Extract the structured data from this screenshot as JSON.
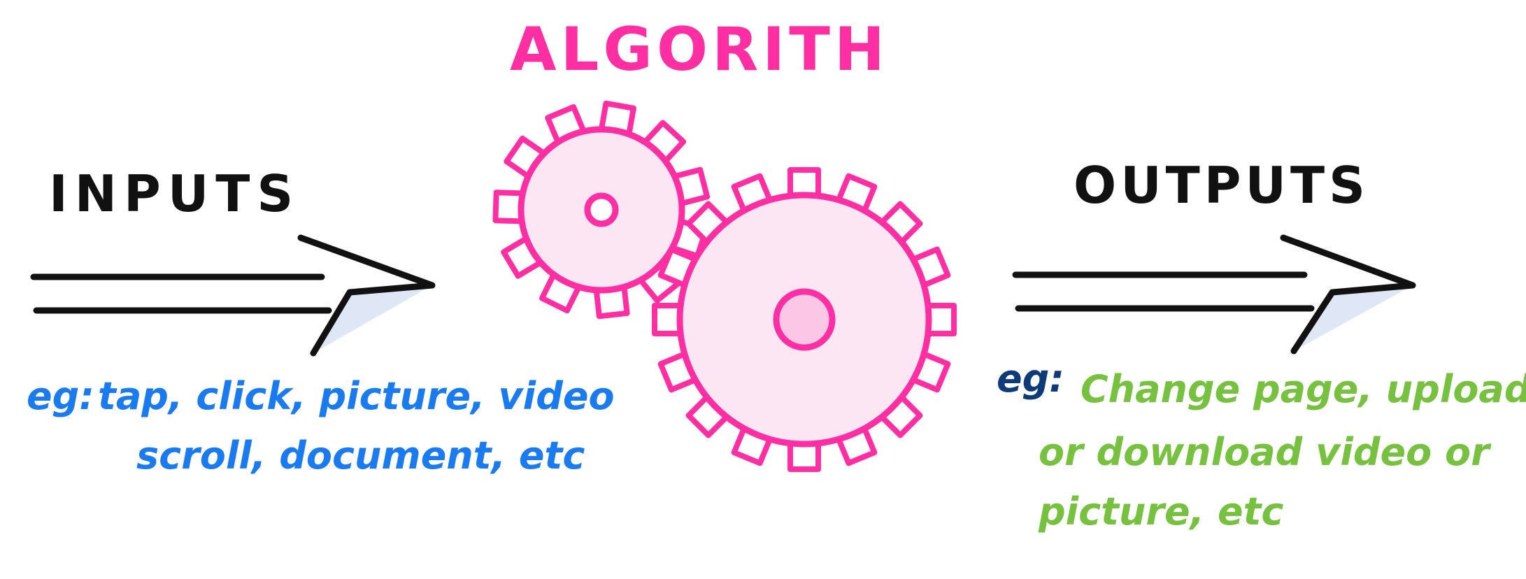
{
  "title": "ALGORITH",
  "inputs": {
    "label": "INPUTS",
    "example_prefix": "eg:",
    "example_line1": "tap, click, picture, video",
    "example_line2": "scroll, document, etc"
  },
  "outputs": {
    "label": "OUTPUTS",
    "example_prefix": "eg:",
    "example_line1": "Change page, upload",
    "example_line2": "or download video or",
    "example_line3": "picture, etc"
  },
  "colors": {
    "ink": "#111111",
    "accent": "#ff2fa3",
    "gear_fill": "#fde6f4",
    "hub_fill": "#fcc7e6",
    "inputs_example": "#1a7bf0",
    "outputs_prefix": "#0f3a7a",
    "outputs_example": "#76c13e",
    "arrow_shade": "#dfe6f6"
  },
  "icons": {
    "gears": "gears-icon",
    "input_arrow": "double-arrow-right-icon",
    "output_arrow": "double-arrow-right-icon"
  }
}
